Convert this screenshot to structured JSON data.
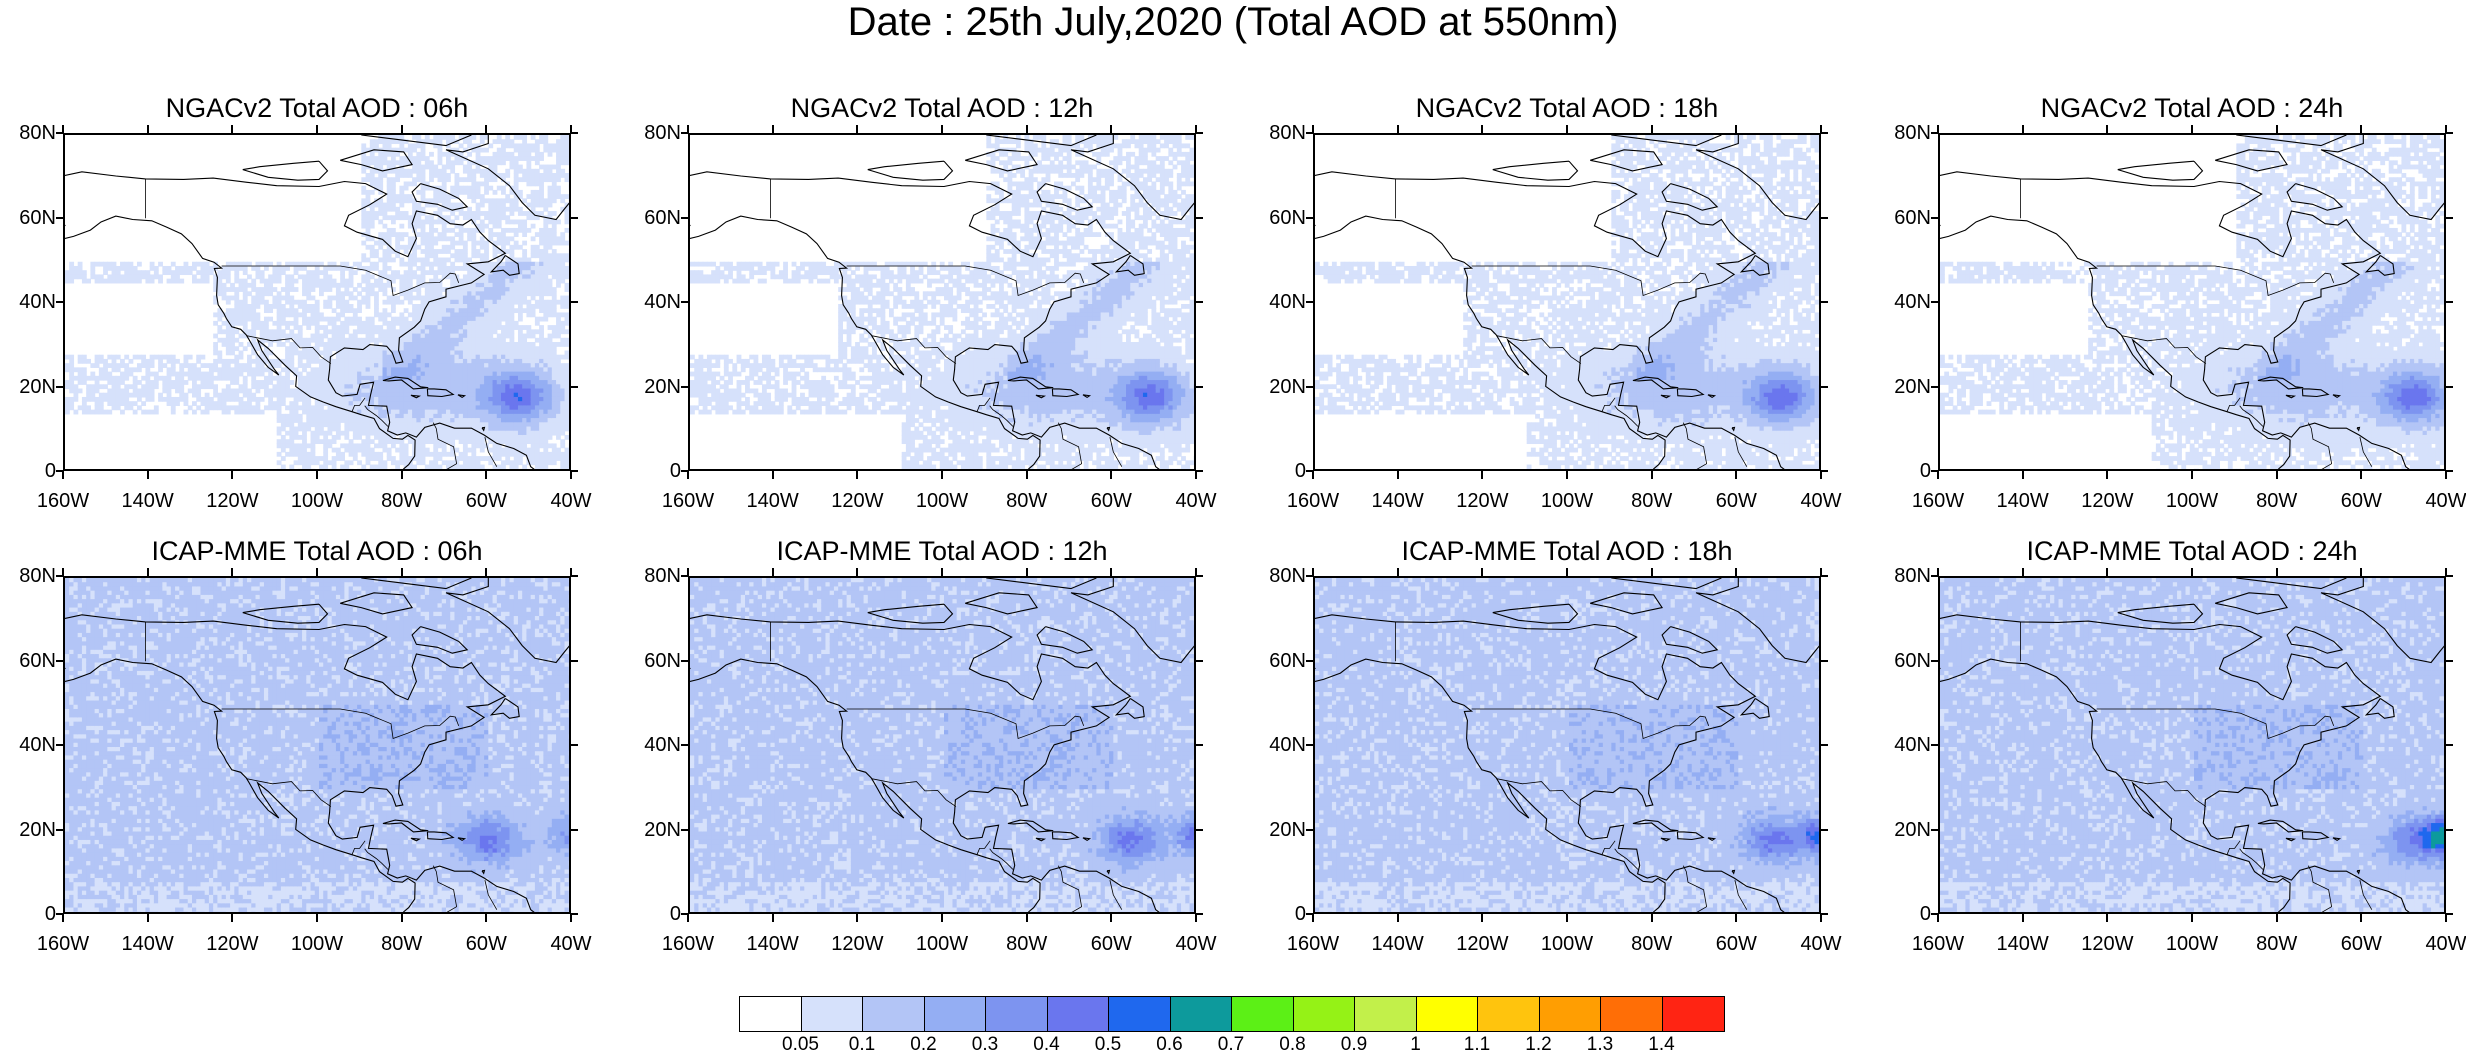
{
  "title": "Date : 25th July,2020 (Total AOD at 550nm)",
  "panels": [
    {
      "title": "NGACv2 Total AOD : 06h",
      "model": "ngac",
      "hour": 6
    },
    {
      "title": "NGACv2 Total AOD : 12h",
      "model": "ngac",
      "hour": 12
    },
    {
      "title": "NGACv2 Total AOD : 18h",
      "model": "ngac",
      "hour": 18
    },
    {
      "title": "NGACv2 Total AOD : 24h",
      "model": "ngac",
      "hour": 24
    },
    {
      "title": "ICAP-MME Total AOD : 06h",
      "model": "icap",
      "hour": 6
    },
    {
      "title": "ICAP-MME Total AOD : 12h",
      "model": "icap",
      "hour": 12
    },
    {
      "title": "ICAP-MME Total AOD : 18h",
      "model": "icap",
      "hour": 18
    },
    {
      "title": "ICAP-MME Total AOD : 24h",
      "model": "icap",
      "hour": 24
    }
  ],
  "lat_labels": [
    "80N",
    "60N",
    "40N",
    "20N",
    "0"
  ],
  "lon_labels": [
    "160W",
    "140W",
    "120W",
    "100W",
    "80W",
    "60W",
    "40W"
  ],
  "colorbar": {
    "colors": [
      "#ffffff",
      "#d6e1fb",
      "#b3c5f6",
      "#94aef3",
      "#7d94f0",
      "#6a76ee",
      "#1f68ee",
      "#0d9a9c",
      "#5cf016",
      "#95f216",
      "#c2f04a",
      "#ffff00",
      "#ffc40d",
      "#ff9e02",
      "#ff6e06",
      "#ff2413"
    ],
    "labels": [
      "0.05",
      "0.1",
      "0.2",
      "0.3",
      "0.4",
      "0.5",
      "0.6",
      "0.7",
      "0.8",
      "0.9",
      "1",
      "1.1",
      "1.2",
      "1.3",
      "1.4"
    ]
  }
}
